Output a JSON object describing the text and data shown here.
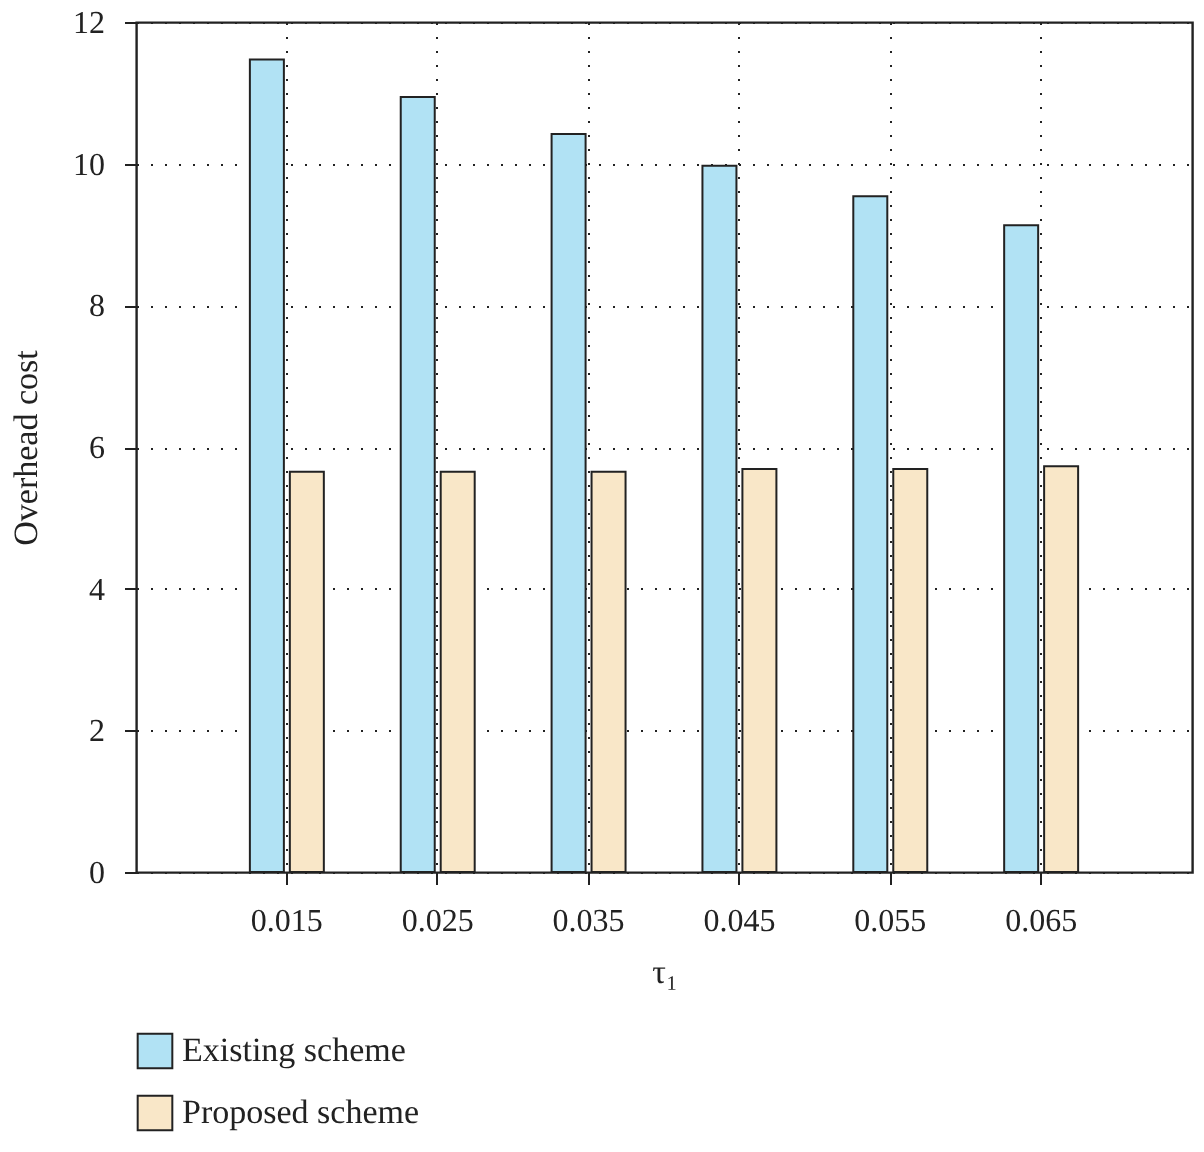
{
  "chart_data": {
    "type": "bar",
    "xlabel": "τ₁",
    "ylabel": "Overhead cost",
    "categories": [
      "0.015",
      "0.025",
      "0.035",
      "0.045",
      "0.055",
      "0.065"
    ],
    "series": [
      {
        "name": "Existing scheme",
        "color": "#b1e2f4",
        "values": [
          11.47,
          10.94,
          10.42,
          9.97,
          9.54,
          9.13
        ]
      },
      {
        "name": "Proposed scheme",
        "color": "#f9e7c8",
        "values": [
          5.65,
          5.65,
          5.65,
          5.69,
          5.69,
          5.73
        ]
      }
    ],
    "ylim": [
      0,
      12
    ],
    "yticks": [
      0,
      2,
      4,
      6,
      8,
      10,
      12
    ],
    "grid": true,
    "legend": "bottom"
  }
}
